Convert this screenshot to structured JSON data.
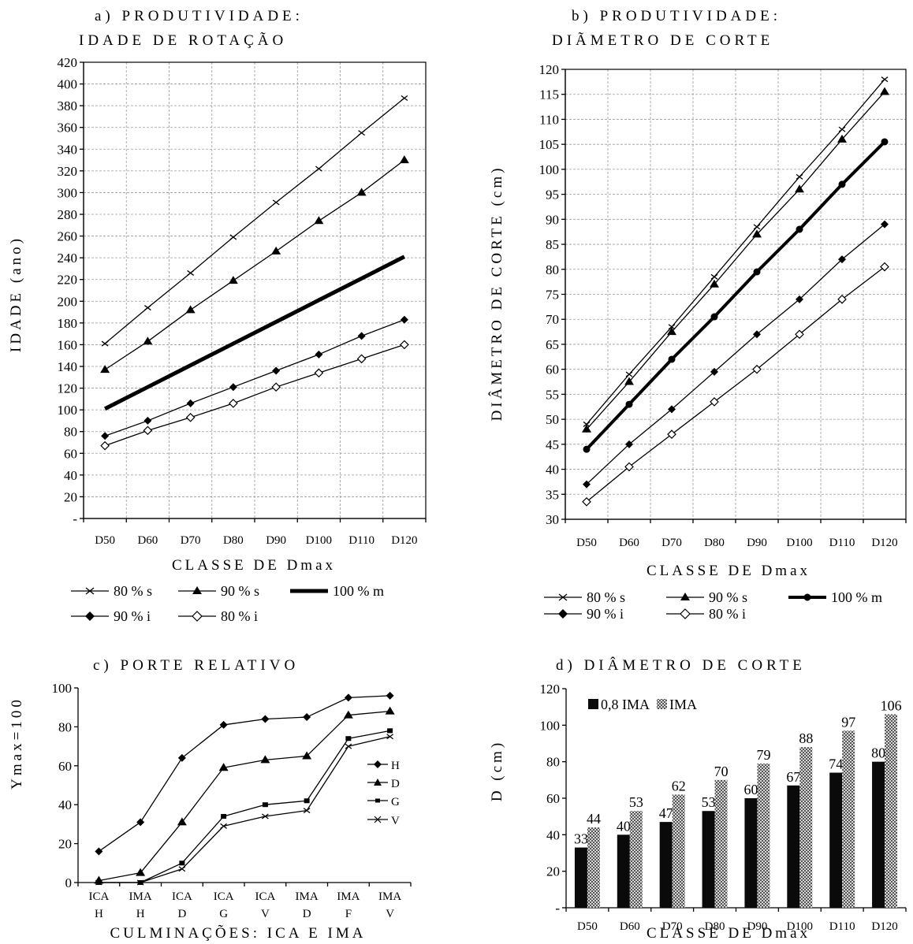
{
  "charts": [
    {
      "id": "a",
      "type": "line",
      "title_line1": "a) PRODUTIVIDADE:",
      "title_line2": "IDADE DE ROTAÇÃO",
      "xlabel": "CLASSE DE Dmax",
      "ylabel": "IDADE (ano)",
      "categories": [
        "D50",
        "D60",
        "D70",
        "D80",
        "D90",
        "D100",
        "D110",
        "D120"
      ],
      "ylim": [
        0,
        420
      ],
      "ytick_step": 20,
      "zero_tick_label": "-",
      "grid": true,
      "series": [
        {
          "name": "80 % s",
          "marker": "cross",
          "width": 1.3,
          "values": [
            161,
            194,
            226,
            259,
            291,
            322,
            355,
            387
          ]
        },
        {
          "name": "90 % s",
          "marker": "triangle",
          "width": 1.3,
          "values": [
            137,
            163,
            192,
            219,
            246,
            274,
            300,
            330
          ]
        },
        {
          "name": "100 % m",
          "marker": "none",
          "width": 5,
          "values": [
            101,
            121,
            141,
            161,
            181,
            201,
            221,
            241
          ]
        },
        {
          "name": "90 % i",
          "marker": "diamond",
          "width": 1.3,
          "values": [
            76,
            90,
            106,
            121,
            136,
            151,
            168,
            183
          ]
        },
        {
          "name": "80 % i",
          "marker": "diamond-open",
          "width": 1.3,
          "values": [
            67,
            81,
            93,
            106,
            121,
            134,
            147,
            160
          ]
        }
      ]
    },
    {
      "id": "b",
      "type": "line",
      "title_line1": "b) PRODUTIVIDADE:",
      "title_line2": "DIÃMETRO DE CORTE",
      "xlabel": "CLASSE DE Dmax",
      "ylabel": "DIÂMETRO DE CORTE (cm)",
      "categories": [
        "D50",
        "D60",
        "D70",
        "D80",
        "D90",
        "D100",
        "D110",
        "D120"
      ],
      "ylim": [
        30,
        120
      ],
      "ytick_step": 5,
      "grid": true,
      "series": [
        {
          "name": "80 % s",
          "marker": "cross",
          "width": 1.3,
          "values": [
            49,
            59,
            68.5,
            78.5,
            88.5,
            98.5,
            108,
            118
          ]
        },
        {
          "name": "90 % s",
          "marker": "triangle",
          "width": 1.3,
          "values": [
            48,
            57.5,
            67.5,
            77,
            87,
            96,
            106,
            115.5
          ]
        },
        {
          "name": "100 % m",
          "marker": "circle",
          "width": 4,
          "values": [
            44,
            53,
            62,
            70.5,
            79.5,
            88,
            97,
            105.5
          ]
        },
        {
          "name": "90 % i",
          "marker": "diamond",
          "width": 1.3,
          "values": [
            37,
            45,
            52,
            59.5,
            67,
            74,
            82,
            89
          ]
        },
        {
          "name": "80 % i",
          "marker": "diamond-open",
          "width": 1.3,
          "values": [
            33.5,
            40.5,
            47,
            53.5,
            60,
            67,
            74,
            80.5
          ]
        }
      ]
    },
    {
      "id": "c",
      "type": "line",
      "title": "c) PORTE RELATIVO",
      "xlabel": "CULMINAÇÕES: ICA E IMA",
      "ylabel": "Ymax=100",
      "categories": [
        [
          "ICA",
          "H"
        ],
        [
          "IMA",
          "H"
        ],
        [
          "ICA",
          "D"
        ],
        [
          "ICA",
          "G"
        ],
        [
          "ICA",
          "V"
        ],
        [
          "IMA",
          "D"
        ],
        [
          "IMA",
          "F"
        ],
        [
          "IMA",
          "V"
        ]
      ],
      "ylim": [
        0,
        100
      ],
      "ytick_step": 20,
      "grid": false,
      "legend_position": "right",
      "series": [
        {
          "name": "H",
          "marker": "diamond",
          "values": [
            16,
            31,
            64,
            81,
            84,
            85,
            95,
            96
          ]
        },
        {
          "name": "D",
          "marker": "triangle",
          "values": [
            1,
            5,
            31,
            59,
            63,
            65,
            86,
            88
          ]
        },
        {
          "name": "G",
          "marker": "square",
          "values": [
            0,
            0,
            10,
            34,
            40,
            42,
            74,
            78
          ]
        },
        {
          "name": "V",
          "marker": "cross",
          "values": [
            0,
            0,
            7,
            29,
            34,
            37,
            70,
            75
          ]
        }
      ]
    },
    {
      "id": "d",
      "type": "bar",
      "title": "d) DIÂMETRO DE CORTE",
      "xlabel": "CLASSE DE Dmax",
      "ylabel": "D (cm)",
      "categories": [
        "D50",
        "D60",
        "D70",
        "D80",
        "D90",
        "D100",
        "D110",
        "D120"
      ],
      "ylim": [
        0,
        120
      ],
      "ytick_step": 20,
      "zero_tick_label": "-",
      "grid": false,
      "legend_position": "top-left",
      "series": [
        {
          "name": "0,8 IMA",
          "color": "#0a0a0a",
          "values": [
            33,
            40,
            47,
            53,
            60,
            67,
            74,
            80
          ]
        },
        {
          "name": "IMA",
          "color": "#8a8a8a",
          "values": [
            44,
            53,
            62,
            70,
            79,
            88,
            97,
            106
          ]
        }
      ]
    }
  ]
}
